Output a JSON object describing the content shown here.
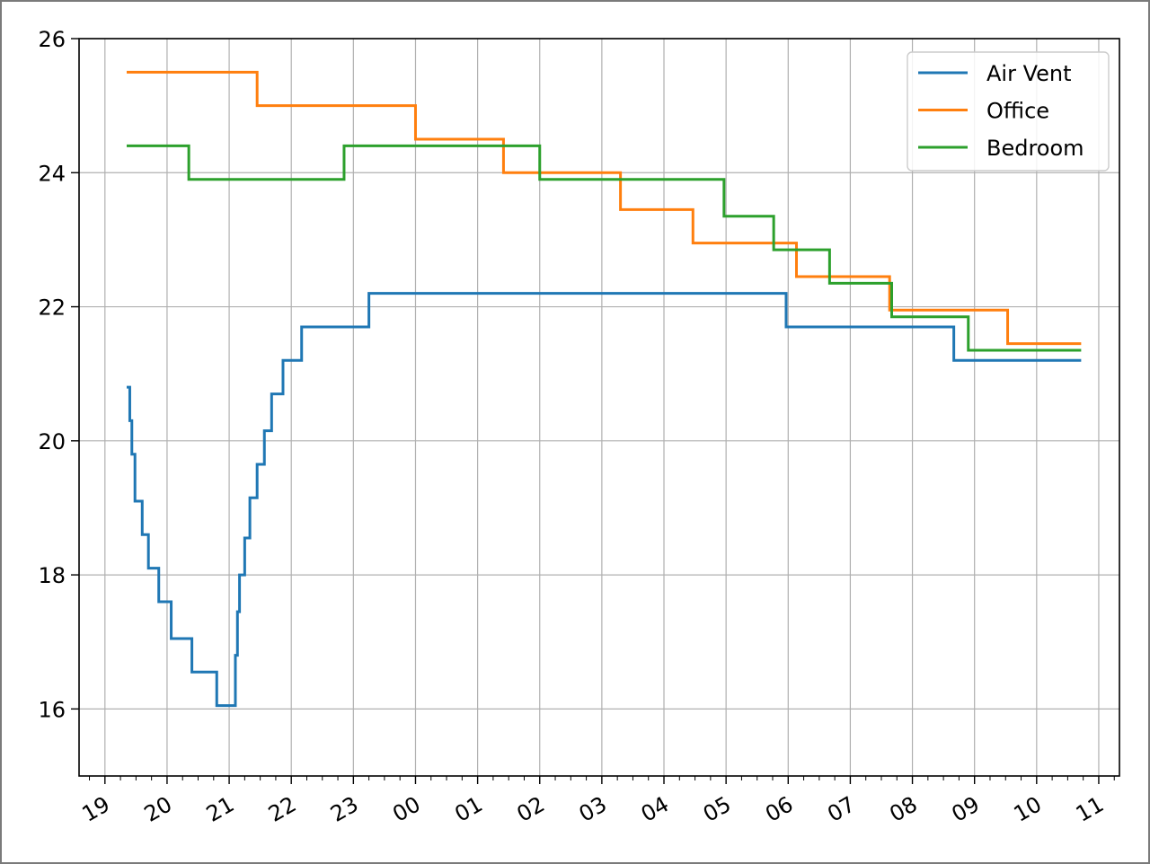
{
  "chart_data": {
    "type": "line",
    "title": "",
    "xlabel": "",
    "ylabel": "",
    "xlim": [
      "18:35",
      "11:20"
    ],
    "ylim": [
      15,
      26
    ],
    "grid": true,
    "legend_position": "upper right",
    "x_ticks": [
      "19",
      "20",
      "21",
      "22",
      "23",
      "00",
      "01",
      "02",
      "03",
      "04",
      "05",
      "06",
      "07",
      "08",
      "09",
      "10",
      "11"
    ],
    "y_ticks": [
      "16",
      "18",
      "20",
      "22",
      "24",
      "26"
    ],
    "series": [
      {
        "name": "Air Vent",
        "color": "#1f77b4",
        "step": true,
        "points": [
          [
            "19:21",
            20.8
          ],
          [
            "19:24",
            20.3
          ],
          [
            "19:26",
            19.8
          ],
          [
            "19:29",
            19.1
          ],
          [
            "19:36",
            18.6
          ],
          [
            "19:42",
            18.1
          ],
          [
            "19:52",
            17.6
          ],
          [
            "20:04",
            17.05
          ],
          [
            "20:24",
            16.55
          ],
          [
            "20:48",
            16.05
          ],
          [
            "21:06",
            16.8
          ],
          [
            "21:08",
            17.45
          ],
          [
            "21:10",
            18.0
          ],
          [
            "21:15",
            18.55
          ],
          [
            "21:20",
            19.15
          ],
          [
            "21:27",
            19.65
          ],
          [
            "21:34",
            20.15
          ],
          [
            "21:41",
            20.7
          ],
          [
            "21:52",
            21.2
          ],
          [
            "22:10",
            21.7
          ],
          [
            "23:15",
            22.2
          ],
          [
            "05:58",
            21.7
          ],
          [
            "08:40",
            21.2
          ],
          [
            "10:43",
            21.2
          ]
        ]
      },
      {
        "name": "Office",
        "color": "#ff7f0e",
        "step": true,
        "points": [
          [
            "19:21",
            25.5
          ],
          [
            "21:27",
            25.0
          ],
          [
            "00:00",
            24.5
          ],
          [
            "01:25",
            24.0
          ],
          [
            "03:18",
            23.45
          ],
          [
            "04:28",
            22.95
          ],
          [
            "06:08",
            22.45
          ],
          [
            "07:38",
            21.95
          ],
          [
            "09:32",
            21.45
          ],
          [
            "10:43",
            21.45
          ]
        ]
      },
      {
        "name": "Bedroom",
        "color": "#2ca02c",
        "step": true,
        "points": [
          [
            "19:21",
            24.4
          ],
          [
            "20:21",
            23.9
          ],
          [
            "22:51",
            24.4
          ],
          [
            "02:00",
            23.9
          ],
          [
            "04:58",
            23.35
          ],
          [
            "05:46",
            22.85
          ],
          [
            "06:40",
            22.35
          ],
          [
            "07:40",
            21.85
          ],
          [
            "08:54",
            21.35
          ],
          [
            "10:43",
            21.35
          ]
        ]
      }
    ]
  }
}
